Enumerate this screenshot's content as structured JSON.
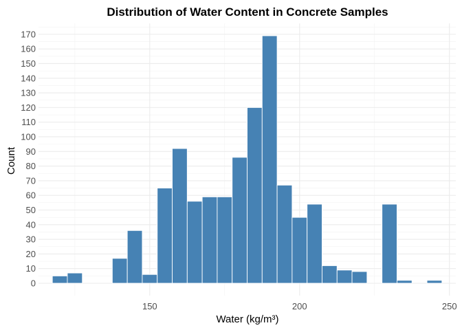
{
  "chart_data": {
    "type": "bar",
    "title": "Distribution of Water Content in Concrete Samples",
    "xlabel": "Water (kg/m³)",
    "ylabel": "Count",
    "bar_color": "#4682b4",
    "bin_width": 5,
    "bins": [
      {
        "start": 117.5,
        "value": 5
      },
      {
        "start": 122.5,
        "value": 7
      },
      {
        "start": 127.5,
        "value": 0
      },
      {
        "start": 132.5,
        "value": 0
      },
      {
        "start": 137.5,
        "value": 17
      },
      {
        "start": 142.5,
        "value": 36
      },
      {
        "start": 147.5,
        "value": 6
      },
      {
        "start": 152.5,
        "value": 65
      },
      {
        "start": 157.5,
        "value": 92
      },
      {
        "start": 162.5,
        "value": 56
      },
      {
        "start": 167.5,
        "value": 59
      },
      {
        "start": 172.5,
        "value": 59
      },
      {
        "start": 177.5,
        "value": 86
      },
      {
        "start": 182.5,
        "value": 120
      },
      {
        "start": 187.5,
        "value": 169
      },
      {
        "start": 192.5,
        "value": 67
      },
      {
        "start": 197.5,
        "value": 45
      },
      {
        "start": 202.5,
        "value": 54
      },
      {
        "start": 207.5,
        "value": 12
      },
      {
        "start": 212.5,
        "value": 9
      },
      {
        "start": 217.5,
        "value": 8
      },
      {
        "start": 222.5,
        "value": 0
      },
      {
        "start": 227.5,
        "value": 54
      },
      {
        "start": 232.5,
        "value": 2
      },
      {
        "start": 237.5,
        "value": 0
      },
      {
        "start": 242.5,
        "value": 2
      }
    ],
    "xlim": [
      112.875,
      252.125
    ],
    "ylim": [
      -8.45,
      177.45
    ],
    "x_ticks": [
      150,
      200,
      250
    ],
    "x_minor_ticks": [
      125,
      175,
      225
    ],
    "y_ticks": [
      0,
      10,
      20,
      30,
      40,
      50,
      60,
      70,
      80,
      90,
      100,
      110,
      120,
      130,
      140,
      150,
      160,
      170
    ],
    "y_minor_ticks": [
      5,
      15,
      25,
      35,
      45,
      55,
      65,
      75,
      85,
      95,
      105,
      115,
      125,
      135,
      145,
      155,
      165,
      175
    ],
    "grid": true,
    "legend": "none"
  }
}
